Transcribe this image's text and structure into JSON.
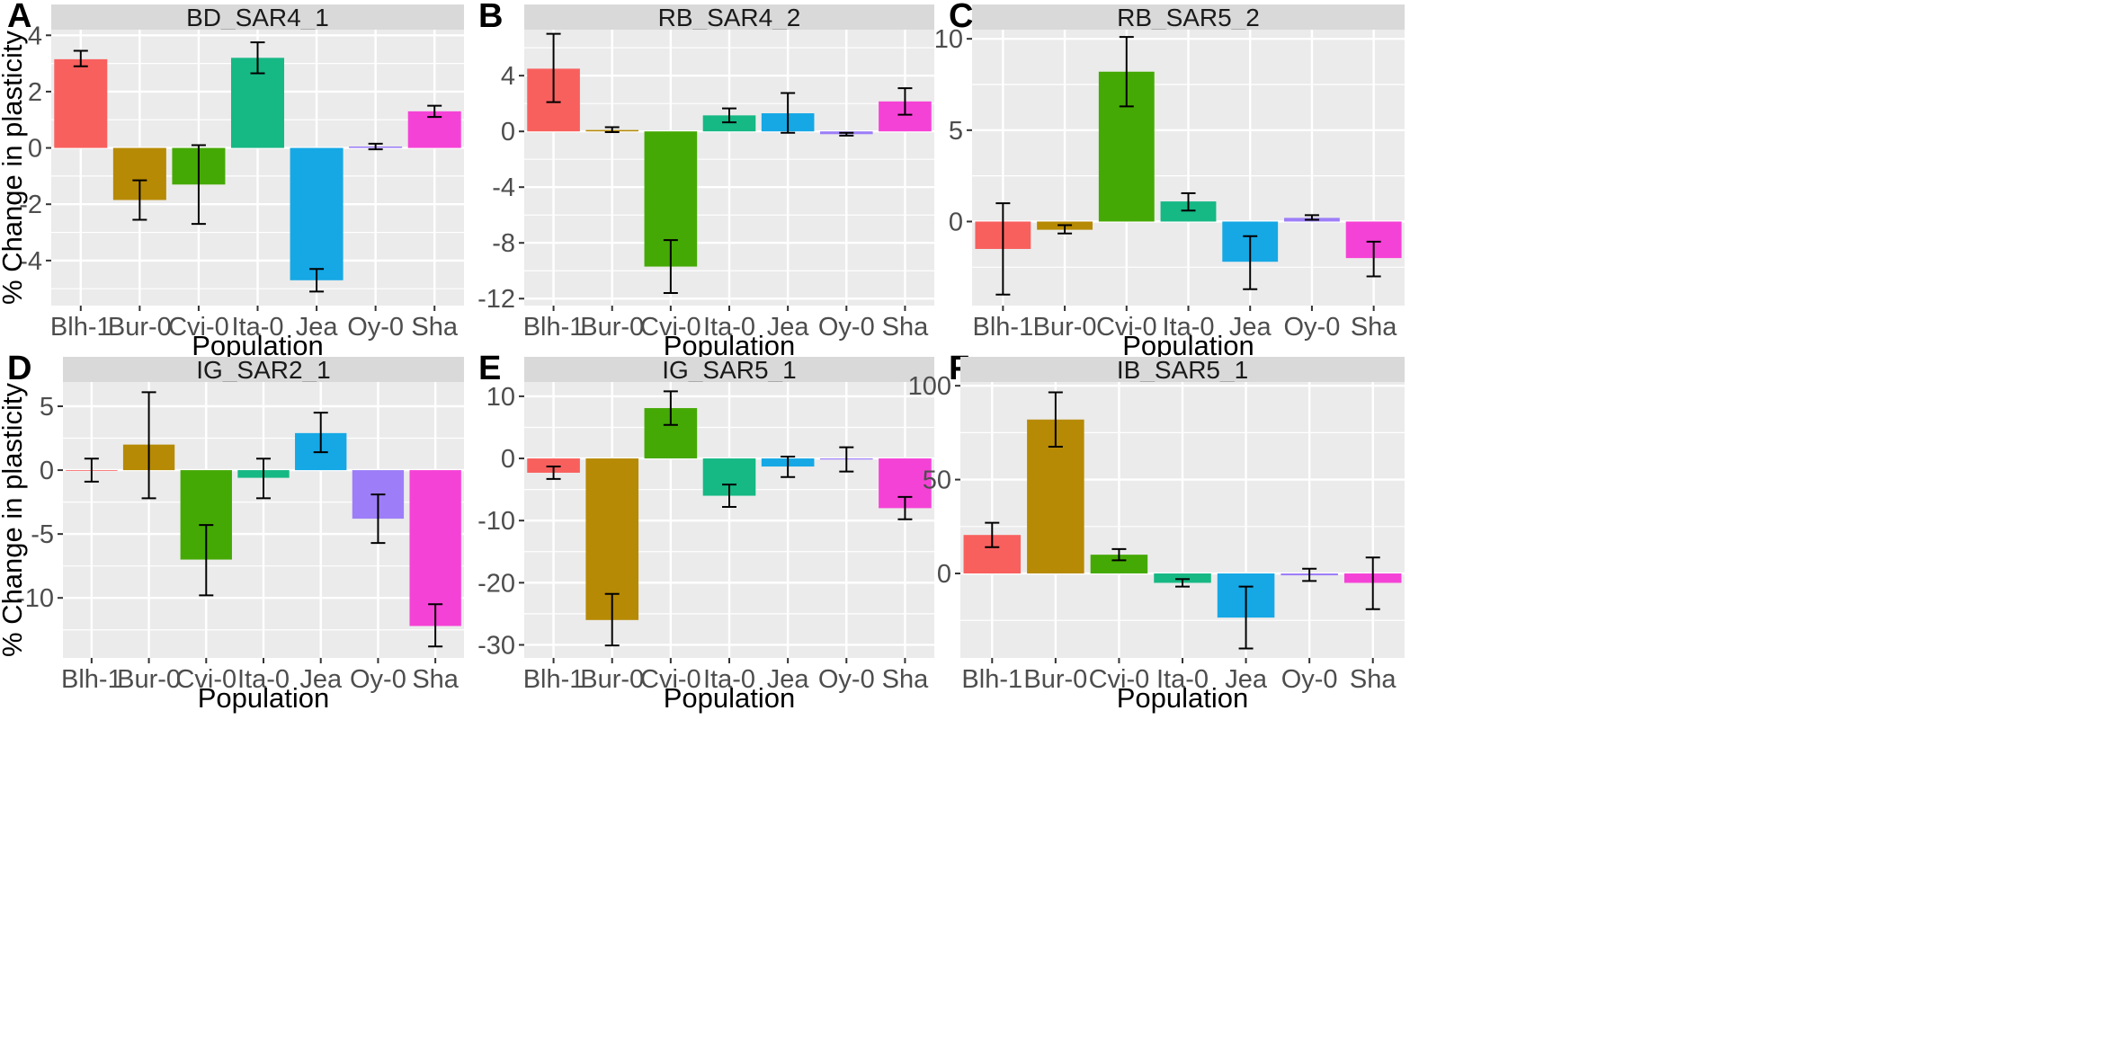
{
  "figure": {
    "ylabel": "% Change in plasticity",
    "xlabel": "Population",
    "populations": [
      "Blh-1",
      "Bur-0",
      "Cvi-0",
      "Ita-0",
      "Jea",
      "Oy-0",
      "Sha"
    ],
    "colors": {
      "Blh-1": "#F8605E",
      "Bur-0": "#B78A05",
      "Cvi-0": "#45A905",
      "Ita-0": "#16B884",
      "Jea": "#15A8E5",
      "Oy-0": "#9D7EF8",
      "Sha": "#F542D6"
    },
    "panel_background": "#EBEBEB",
    "strip_background": "#D9D9D9",
    "grid_color": "#FFFFFF"
  },
  "chart_data": [
    {
      "type": "bar",
      "letter": "A",
      "title": "BD_SAR4_1",
      "categories": [
        "Blh-1",
        "Bur-0",
        "Cvi-0",
        "Ita-0",
        "Jea",
        "Oy-0",
        "Sha"
      ],
      "values": [
        3.15,
        -1.85,
        -1.3,
        3.2,
        -4.7,
        0.05,
        1.3
      ],
      "err_low": [
        2.9,
        -2.55,
        -2.7,
        2.65,
        -5.1,
        -0.05,
        1.1
      ],
      "err_high": [
        3.45,
        -1.15,
        0.1,
        3.75,
        -4.3,
        0.15,
        1.5
      ],
      "ylim": [
        -5.6,
        4.2
      ],
      "yticks": [
        -4,
        -2,
        0,
        2,
        4
      ],
      "ylabels": [
        "-4",
        "-2",
        "0",
        "2",
        "4"
      ],
      "xlabel": "Population",
      "ylabel": "% Change in plasticity"
    },
    {
      "type": "bar",
      "letter": "B",
      "title": "RB_SAR4_2",
      "categories": [
        "Blh-1",
        "Bur-0",
        "Cvi-0",
        "Ita-0",
        "Jea",
        "Oy-0",
        "Sha"
      ],
      "values": [
        4.5,
        0.1,
        -9.7,
        1.15,
        1.3,
        -0.2,
        2.15
      ],
      "err_low": [
        2.1,
        -0.05,
        -11.6,
        0.65,
        -0.1,
        -0.3,
        1.2
      ],
      "err_high": [
        7.0,
        0.3,
        -7.8,
        1.65,
        2.75,
        -0.1,
        3.1
      ],
      "ylim": [
        -12.5,
        7.3
      ],
      "yticks": [
        -12,
        -8,
        -4,
        0,
        4
      ],
      "ylabels": [
        "-12",
        "-8",
        "-4",
        "0",
        "4"
      ],
      "xlabel": "Population",
      "ylabel": ""
    },
    {
      "type": "bar",
      "letter": "C",
      "title": "RB_SAR5_2",
      "categories": [
        "Blh-1",
        "Bur-0",
        "Cvi-0",
        "Ita-0",
        "Jea",
        "Oy-0",
        "Sha"
      ],
      "values": [
        -1.5,
        -0.45,
        8.2,
        1.1,
        -2.2,
        0.2,
        -2.0
      ],
      "err_low": [
        -4.0,
        -0.65,
        6.3,
        0.6,
        -3.7,
        0.1,
        -3.0
      ],
      "err_high": [
        1.0,
        -0.2,
        10.1,
        1.55,
        -0.8,
        0.35,
        -1.1
      ],
      "ylim": [
        -4.6,
        10.5
      ],
      "yticks": [
        0,
        5,
        10
      ],
      "ylabels": [
        "0",
        "5",
        "10"
      ],
      "xlabel": "Population",
      "ylabel": ""
    },
    {
      "type": "bar",
      "letter": "D",
      "title": "IG_SAR2_1",
      "categories": [
        "Blh-1",
        "Bur-0",
        "Cvi-0",
        "Ita-0",
        "Jea",
        "Oy-0",
        "Sha"
      ],
      "values": [
        0.0,
        2.0,
        -7.0,
        -0.6,
        2.9,
        -3.8,
        -12.2
      ],
      "err_low": [
        -0.9,
        -2.2,
        -9.8,
        -2.2,
        1.4,
        -5.7,
        -13.8
      ],
      "err_high": [
        0.9,
        6.1,
        -4.3,
        0.9,
        4.5,
        -1.9,
        -10.5
      ],
      "ylim": [
        -14.7,
        6.9
      ],
      "yticks": [
        -10,
        -5,
        0,
        5
      ],
      "ylabels": [
        "-10",
        "-5",
        "0",
        "5"
      ],
      "xlabel": "Population",
      "ylabel": "% Change in plasticity"
    },
    {
      "type": "bar",
      "letter": "E",
      "title": "IG_SAR5_1",
      "categories": [
        "Blh-1",
        "Bur-0",
        "Cvi-0",
        "Ita-0",
        "Jea",
        "Oy-0",
        "Sha"
      ],
      "values": [
        -2.3,
        -26.0,
        8.1,
        -6.0,
        -1.3,
        -0.1,
        -8.0
      ],
      "err_low": [
        -3.3,
        -30.1,
        5.4,
        -7.8,
        -3.0,
        -2.1,
        -9.8
      ],
      "err_high": [
        -1.3,
        -21.8,
        10.8,
        -4.2,
        0.3,
        1.8,
        -6.2
      ],
      "ylim": [
        -32.1,
        12.3
      ],
      "yticks": [
        -30,
        -20,
        -10,
        0,
        10
      ],
      "ylabels": [
        "-30",
        "-20",
        "-10",
        "0",
        "10"
      ],
      "xlabel": "Population",
      "ylabel": ""
    },
    {
      "type": "bar",
      "letter": "F",
      "title": "IB_SAR5_1",
      "categories": [
        "Blh-1",
        "Bur-0",
        "Cvi-0",
        "Ita-0",
        "Jea",
        "Oy-0",
        "Sha"
      ],
      "values": [
        20.5,
        82.0,
        10.0,
        -5.0,
        -23.5,
        -1.0,
        -5.0
      ],
      "err_low": [
        14.0,
        67.5,
        7.0,
        -7.0,
        -40.0,
        -4.0,
        -19.0
      ],
      "err_high": [
        27.0,
        96.5,
        13.0,
        -3.0,
        -7.0,
        2.5,
        8.5
      ],
      "ylim": [
        -45.0,
        102.0
      ],
      "yticks": [
        0,
        50,
        100
      ],
      "ylabels": [
        "0",
        "50",
        "100"
      ],
      "xlabel": "Population",
      "ylabel": ""
    }
  ]
}
